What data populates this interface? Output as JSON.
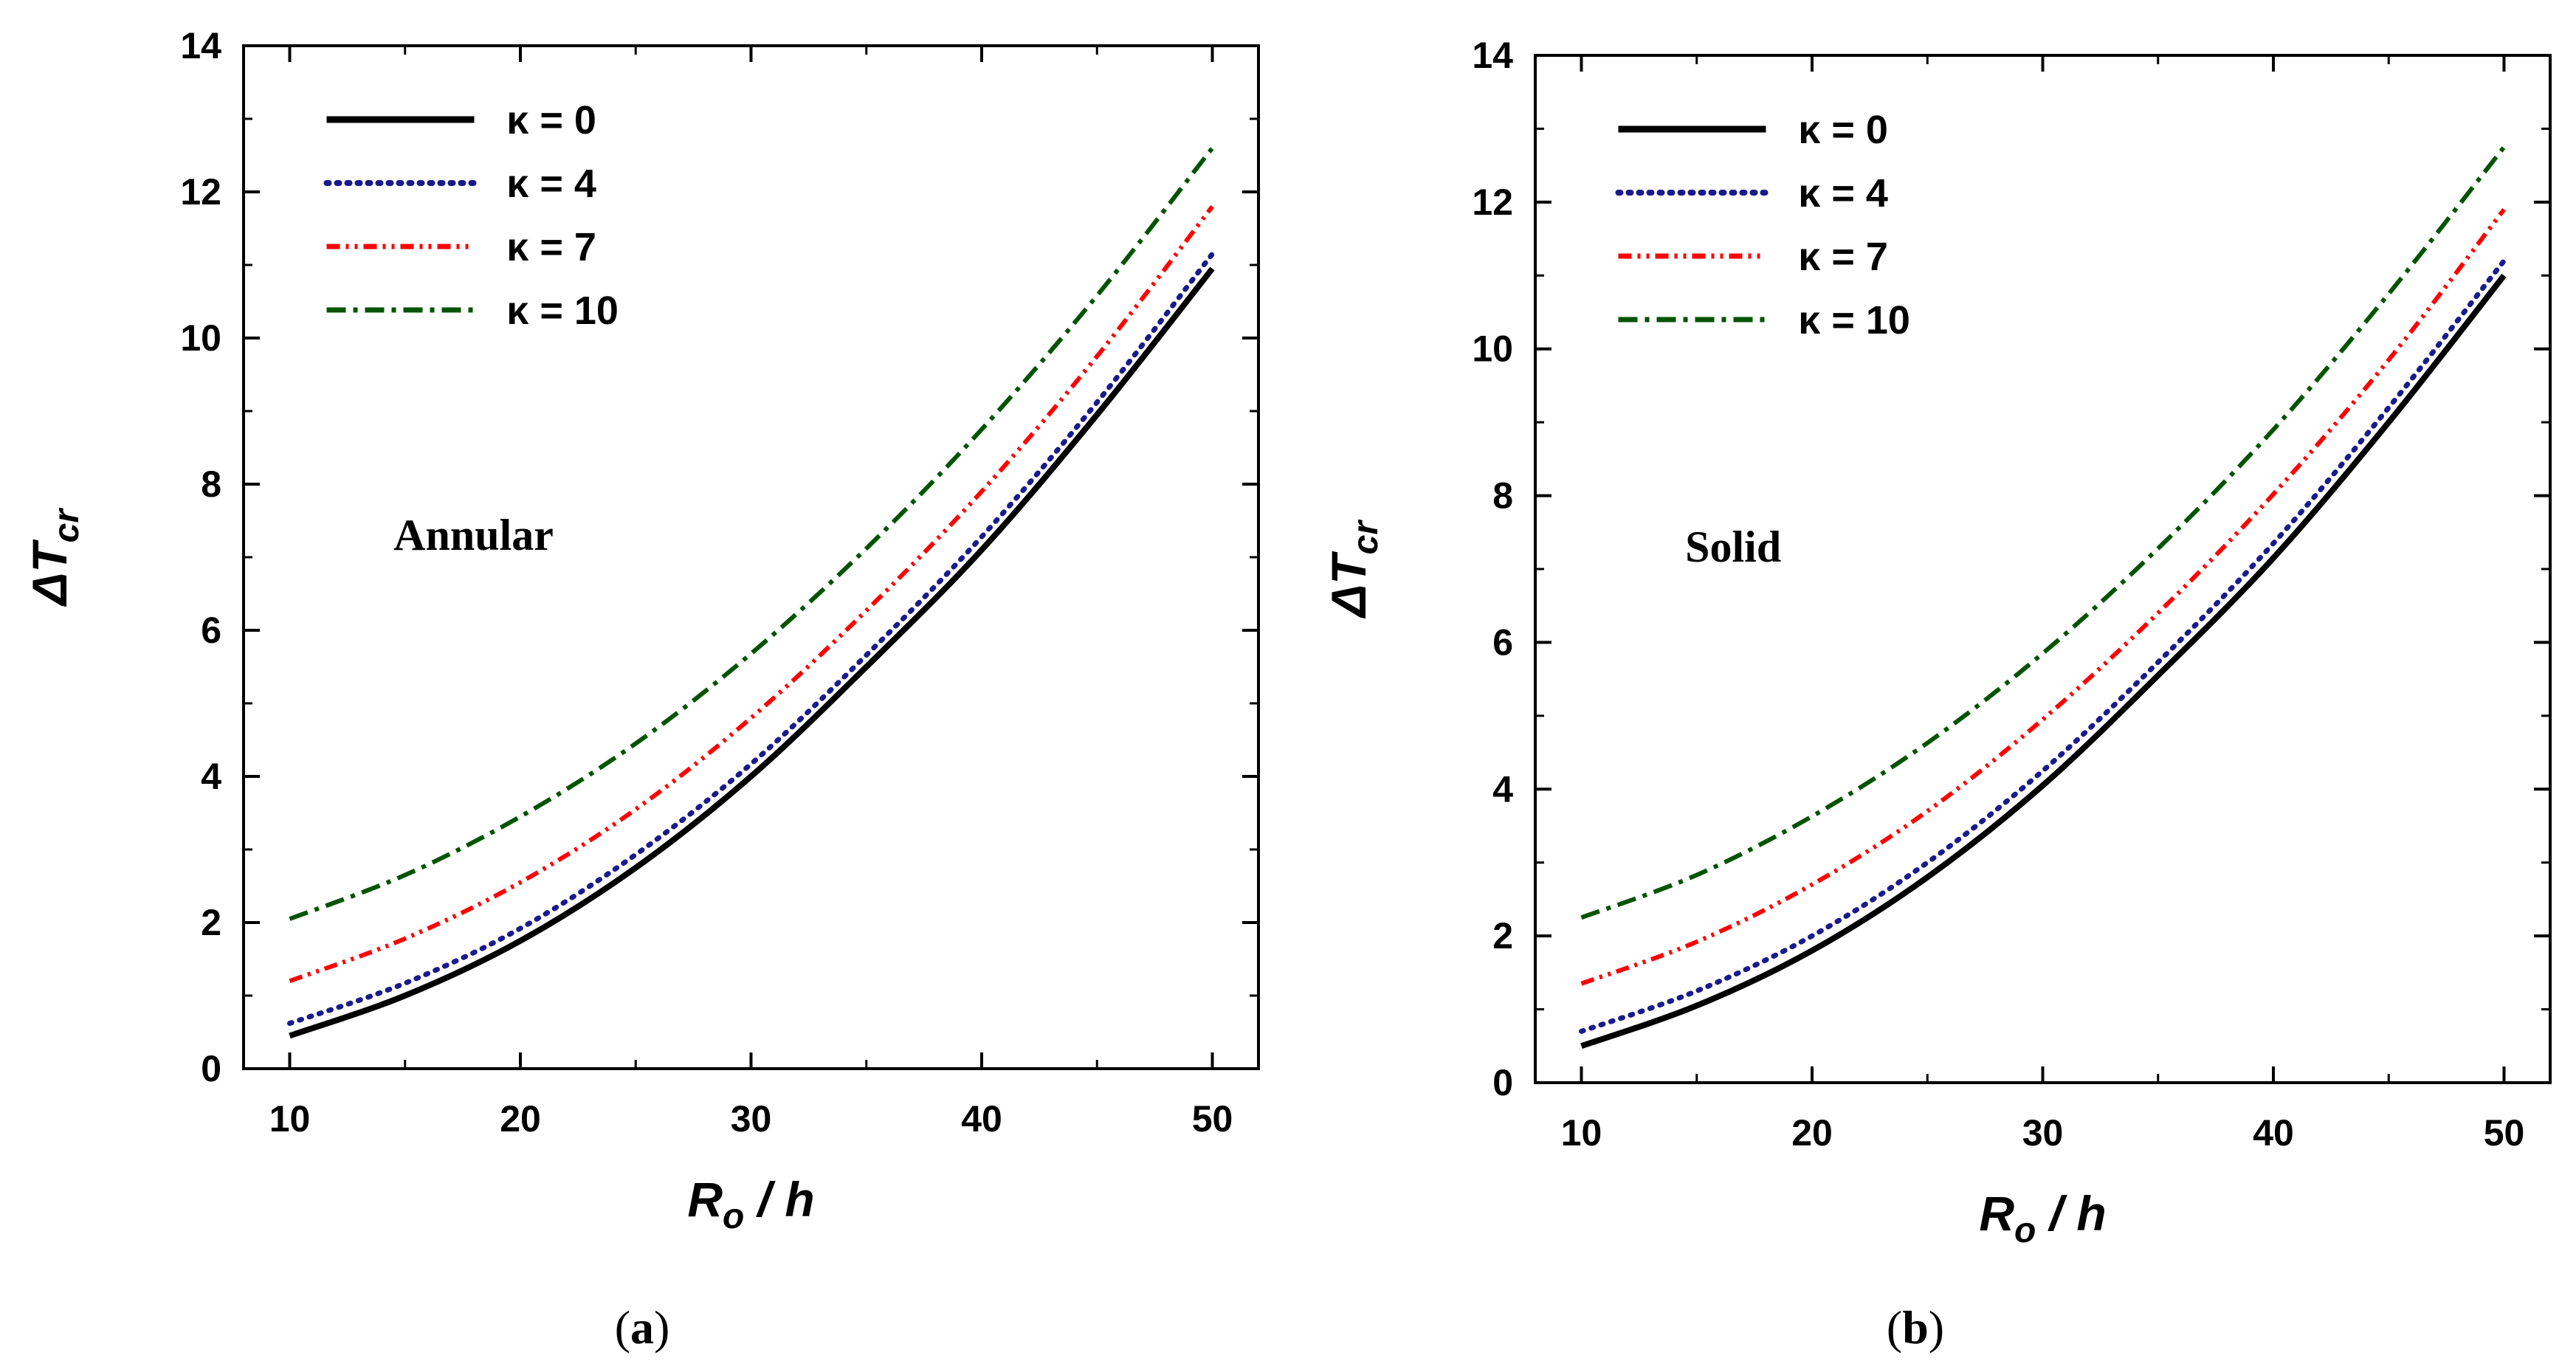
{
  "chart_data": [
    {
      "type": "line",
      "panel_label": "a",
      "annotation": "Annular",
      "xlabel": "R",
      "xlabel_sub": "o",
      "xlabel_suffix": " / h",
      "ylabel": "ΔT",
      "ylabel_sub": "cr",
      "xlim": [
        8,
        52
      ],
      "ylim": [
        0,
        14
      ],
      "xticks": [
        10,
        20,
        30,
        40,
        50
      ],
      "yticks": [
        0,
        2,
        4,
        6,
        8,
        10,
        12,
        14
      ],
      "x": [
        10,
        15,
        20,
        25,
        30,
        35,
        40,
        45,
        50
      ],
      "series": [
        {
          "name": "κ = 0",
          "color": "#000000",
          "dash": "solid",
          "values": [
            0.45,
            1.0,
            1.75,
            2.75,
            4.0,
            5.5,
            7.1,
            8.95,
            10.95
          ]
        },
        {
          "name": "κ = 4",
          "color": "#1a1a8c",
          "dash": "dot",
          "values": [
            0.62,
            1.17,
            1.92,
            2.93,
            4.17,
            5.66,
            7.28,
            9.12,
            11.15
          ]
        },
        {
          "name": "κ = 7",
          "color": "#ff0000",
          "dash": "dashdotdot",
          "values": [
            1.2,
            1.78,
            2.55,
            3.55,
            4.8,
            6.27,
            7.9,
            9.75,
            11.8
          ]
        },
        {
          "name": "κ = 10",
          "color": "#005400",
          "dash": "dashdot",
          "values": [
            2.05,
            2.65,
            3.45,
            4.45,
            5.68,
            7.12,
            8.75,
            10.58,
            12.6
          ]
        }
      ]
    },
    {
      "type": "line",
      "panel_label": "b",
      "annotation": "Solid",
      "xlabel": "R",
      "xlabel_sub": "o",
      "xlabel_suffix": " / h",
      "ylabel": "ΔT",
      "ylabel_sub": "cr",
      "xlim": [
        8,
        52
      ],
      "ylim": [
        0,
        14
      ],
      "xticks": [
        10,
        20,
        30,
        40,
        50
      ],
      "yticks": [
        0,
        2,
        4,
        6,
        8,
        10,
        12,
        14
      ],
      "x": [
        10,
        15,
        20,
        25,
        30,
        35,
        40,
        45,
        50
      ],
      "series": [
        {
          "name": "κ = 0",
          "color": "#000000",
          "dash": "solid",
          "values": [
            0.5,
            1.05,
            1.8,
            2.8,
            4.05,
            5.55,
            7.15,
            9.0,
            11.0
          ]
        },
        {
          "name": "κ = 4",
          "color": "#1a1a8c",
          "dash": "dot",
          "values": [
            0.7,
            1.25,
            2.0,
            3.0,
            4.25,
            5.73,
            7.35,
            9.2,
            11.2
          ]
        },
        {
          "name": "κ = 7",
          "color": "#ff0000",
          "dash": "dashdotdot",
          "values": [
            1.35,
            1.92,
            2.7,
            3.7,
            4.95,
            6.4,
            8.02,
            9.85,
            11.9
          ]
        },
        {
          "name": "κ = 10",
          "color": "#005400",
          "dash": "dashdot",
          "values": [
            2.25,
            2.83,
            3.63,
            4.63,
            5.85,
            7.28,
            8.9,
            10.75,
            12.75
          ]
        }
      ]
    }
  ]
}
